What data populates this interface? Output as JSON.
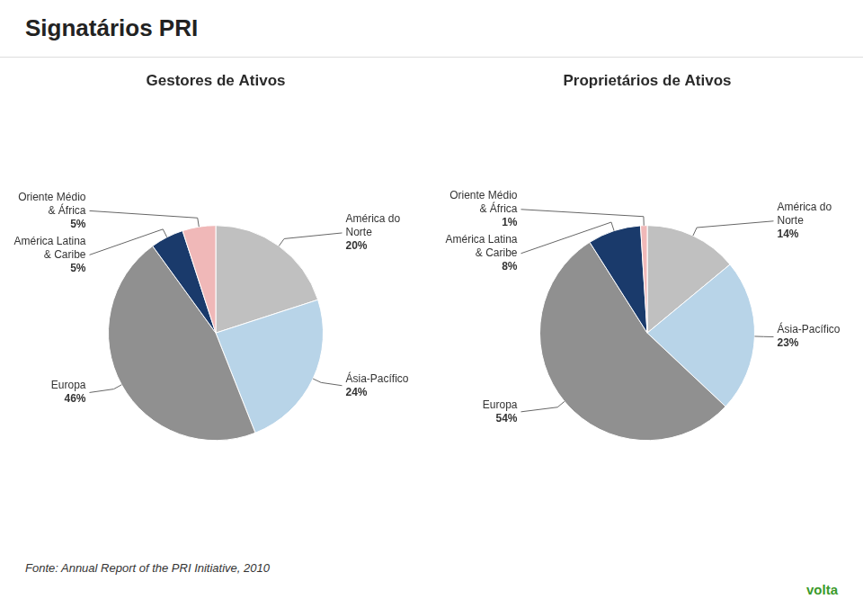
{
  "title": "Signatários PRI",
  "annotations": [
    "Fonte: Annual Report of the PRI Initiative, 2010",
    "volta"
  ],
  "chart_data": [
    {
      "type": "pie",
      "title": "Gestores de Ativos",
      "categories": [
        "América do\nNorte",
        "Ásia-Pacífico",
        "Europa",
        "América Latina\n& Caribe",
        "Oriente Médio\n& África"
      ],
      "values": [
        20,
        24,
        46,
        5,
        5
      ],
      "value_labels": [
        "20%",
        "24%",
        "46%",
        "5%",
        "5%"
      ],
      "colors": [
        "#c0c0c0",
        "#b8d4e8",
        "#909090",
        "#1a3a6b",
        "#f0b8b8"
      ],
      "data_labels": true
    },
    {
      "type": "pie",
      "title": "Proprietários de Ativos",
      "categories": [
        "América do\nNorte",
        "Ásia-Pacífico",
        "Europa",
        "América Latina\n& Caribe",
        "Oriente Médio\n& África"
      ],
      "values": [
        14,
        23,
        54,
        8,
        1
      ],
      "value_labels": [
        "14%",
        "23%",
        "54%",
        "8%",
        "1%"
      ],
      "colors": [
        "#c0c0c0",
        "#b8d4e8",
        "#909090",
        "#1a3a6b",
        "#f0b8b8"
      ],
      "data_labels": true
    }
  ]
}
